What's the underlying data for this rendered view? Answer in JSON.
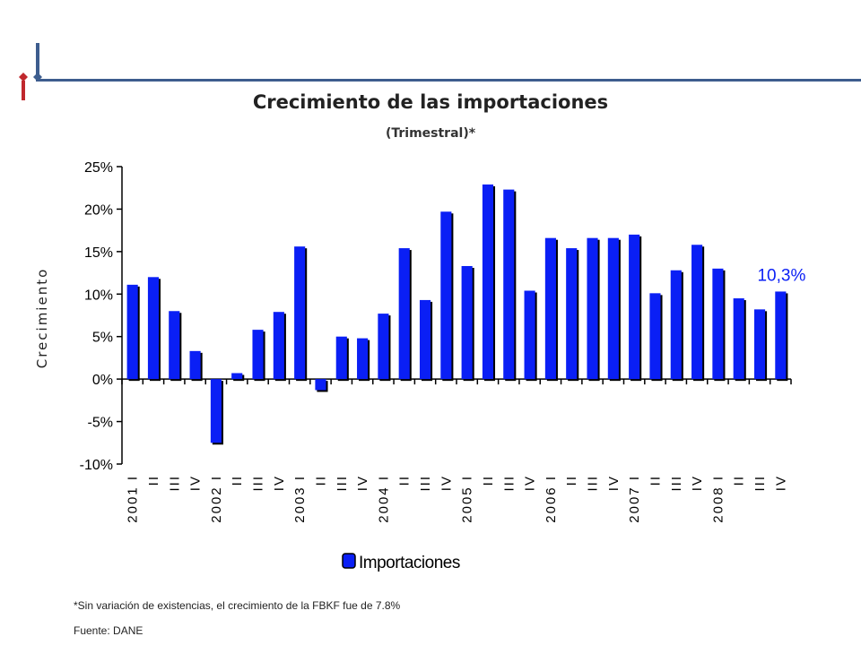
{
  "chart_data": {
    "type": "bar",
    "title": "Crecimiento de las importaciones",
    "subtitle": "(Trimestral)*",
    "ylabel": "Crecimiento",
    "ylim": [
      -0.1,
      0.25
    ],
    "yticks": [
      "25%",
      "20%",
      "15%",
      "10%",
      "5%",
      "0%",
      "-5%",
      "-10%"
    ],
    "ytick_values": [
      0.25,
      0.2,
      0.15,
      0.1,
      0.05,
      0.0,
      -0.05,
      -0.1
    ],
    "categories": [
      "2001 I",
      "II",
      "III",
      "IV",
      "2002 I",
      "II",
      "III",
      "IV",
      "2003 I",
      "II",
      "III",
      "IV",
      "2004 I",
      "II",
      "III",
      "IV",
      "2005 I",
      "II",
      "III",
      "IV",
      "2006 I",
      "II",
      "III",
      "IV",
      "2007 I",
      "II",
      "III",
      "IV",
      "2008 I",
      "II",
      "III",
      "IV"
    ],
    "series": [
      {
        "name": "Importaciones",
        "color": "#0a1ff5",
        "values": [
          0.111,
          0.12,
          0.08,
          0.033,
          -0.075,
          0.007,
          0.058,
          0.079,
          0.156,
          -0.013,
          0.05,
          0.048,
          0.077,
          0.154,
          0.093,
          0.197,
          0.133,
          0.229,
          0.223,
          0.104,
          0.166,
          0.154,
          0.166,
          0.166,
          0.17,
          0.101,
          0.128,
          0.158,
          0.13,
          0.095,
          0.082,
          0.103
        ]
      }
    ],
    "annotation": {
      "text": "10,3%",
      "color": "#0a1ff5"
    },
    "legend": "bottom",
    "grid": false
  },
  "footnote": "*Sin variación de existencias, el crecimiento de la FBKF fue de 7.8%",
  "source": "Fuente: DANE"
}
